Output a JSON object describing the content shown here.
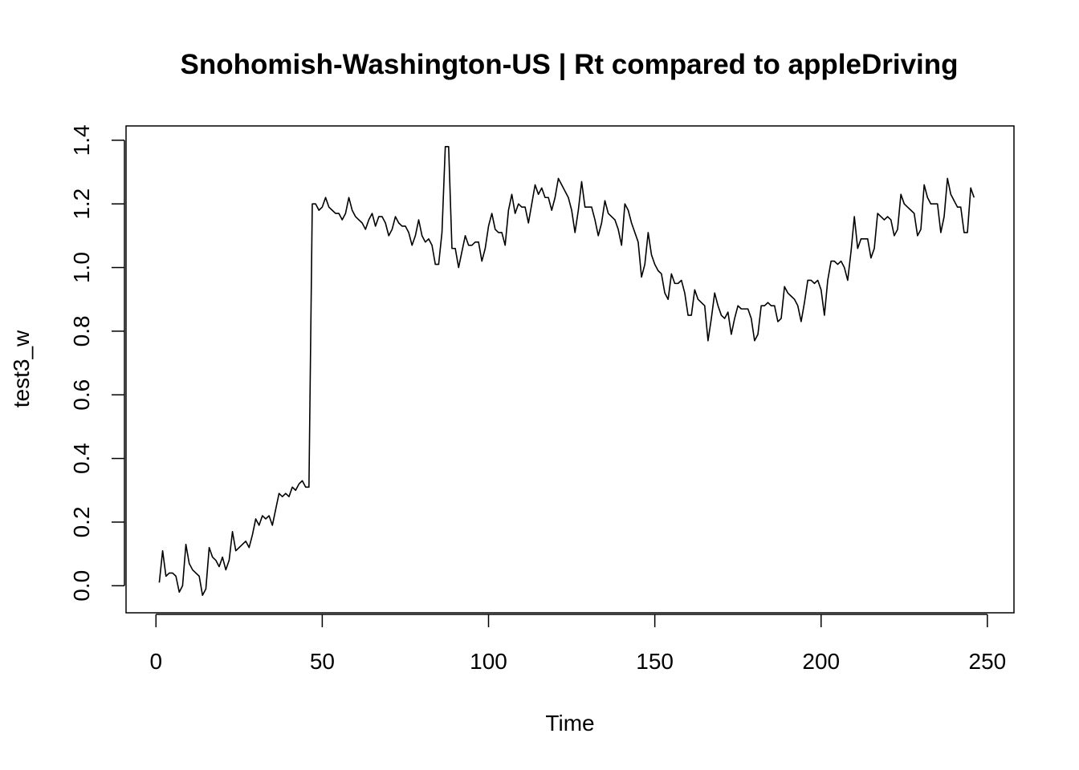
{
  "chart_data": {
    "type": "line",
    "title": "Snohomish-Washington-US | Rt compared to appleDriving",
    "xlabel": "Time",
    "ylabel": "test3_w",
    "xlim": [
      -9,
      258
    ],
    "ylim": [
      -0.085,
      1.445
    ],
    "x_ticks": [
      0,
      50,
      100,
      150,
      200,
      250
    ],
    "x_tick_labels": [
      "0",
      "50",
      "100",
      "150",
      "200",
      "250"
    ],
    "y_ticks": [
      0.0,
      0.2,
      0.4,
      0.6,
      0.8,
      1.0,
      1.2,
      1.4
    ],
    "y_tick_labels": [
      "0.0",
      "0.2",
      "0.4",
      "0.6",
      "0.8",
      "1.0",
      "1.2",
      "1.4"
    ],
    "grid": false,
    "legend": "none",
    "series": [
      {
        "x_start": 1,
        "values": [
          0.01,
          0.11,
          0.03,
          0.04,
          0.04,
          0.03,
          -0.02,
          0.0,
          0.13,
          0.07,
          0.05,
          0.04,
          0.03,
          -0.03,
          -0.01,
          0.12,
          0.09,
          0.08,
          0.06,
          0.09,
          0.05,
          0.08,
          0.17,
          0.11,
          0.12,
          0.13,
          0.14,
          0.12,
          0.16,
          0.21,
          0.19,
          0.22,
          0.21,
          0.22,
          0.19,
          0.24,
          0.29,
          0.28,
          0.29,
          0.28,
          0.31,
          0.3,
          0.32,
          0.33,
          0.31,
          0.31,
          1.2,
          1.2,
          1.18,
          1.19,
          1.22,
          1.19,
          1.18,
          1.17,
          1.17,
          1.15,
          1.17,
          1.22,
          1.18,
          1.16,
          1.15,
          1.14,
          1.12,
          1.15,
          1.17,
          1.13,
          1.16,
          1.16,
          1.14,
          1.1,
          1.12,
          1.16,
          1.14,
          1.13,
          1.13,
          1.11,
          1.07,
          1.1,
          1.15,
          1.1,
          1.08,
          1.09,
          1.07,
          1.01,
          1.01,
          1.11,
          1.38,
          1.38,
          1.06,
          1.06,
          1.0,
          1.05,
          1.1,
          1.07,
          1.07,
          1.08,
          1.08,
          1.02,
          1.06,
          1.13,
          1.17,
          1.12,
          1.11,
          1.11,
          1.07,
          1.18,
          1.23,
          1.17,
          1.2,
          1.19,
          1.19,
          1.14,
          1.2,
          1.26,
          1.23,
          1.25,
          1.22,
          1.22,
          1.18,
          1.22,
          1.28,
          1.26,
          1.24,
          1.22,
          1.18,
          1.11,
          1.18,
          1.27,
          1.19,
          1.19,
          1.19,
          1.15,
          1.1,
          1.14,
          1.21,
          1.17,
          1.16,
          1.15,
          1.12,
          1.07,
          1.2,
          1.18,
          1.14,
          1.11,
          1.08,
          0.97,
          1.01,
          1.11,
          1.04,
          1.01,
          0.99,
          0.98,
          0.92,
          0.9,
          0.98,
          0.95,
          0.95,
          0.96,
          0.92,
          0.85,
          0.85,
          0.93,
          0.9,
          0.89,
          0.88,
          0.77,
          0.84,
          0.92,
          0.88,
          0.85,
          0.84,
          0.86,
          0.79,
          0.84,
          0.88,
          0.87,
          0.87,
          0.87,
          0.84,
          0.77,
          0.79,
          0.88,
          0.88,
          0.89,
          0.88,
          0.88,
          0.83,
          0.84,
          0.94,
          0.92,
          0.91,
          0.9,
          0.88,
          0.83,
          0.89,
          0.96,
          0.96,
          0.95,
          0.96,
          0.93,
          0.85,
          0.96,
          1.02,
          1.02,
          1.01,
          1.02,
          1.0,
          0.96,
          1.05,
          1.16,
          1.06,
          1.09,
          1.09,
          1.09,
          1.03,
          1.06,
          1.17,
          1.16,
          1.15,
          1.16,
          1.15,
          1.1,
          1.12,
          1.23,
          1.2,
          1.19,
          1.18,
          1.17,
          1.1,
          1.12,
          1.26,
          1.22,
          1.2,
          1.2,
          1.2,
          1.11,
          1.16,
          1.28,
          1.23,
          1.21,
          1.19,
          1.19,
          1.11,
          1.11,
          1.25,
          1.22
        ]
      }
    ]
  }
}
